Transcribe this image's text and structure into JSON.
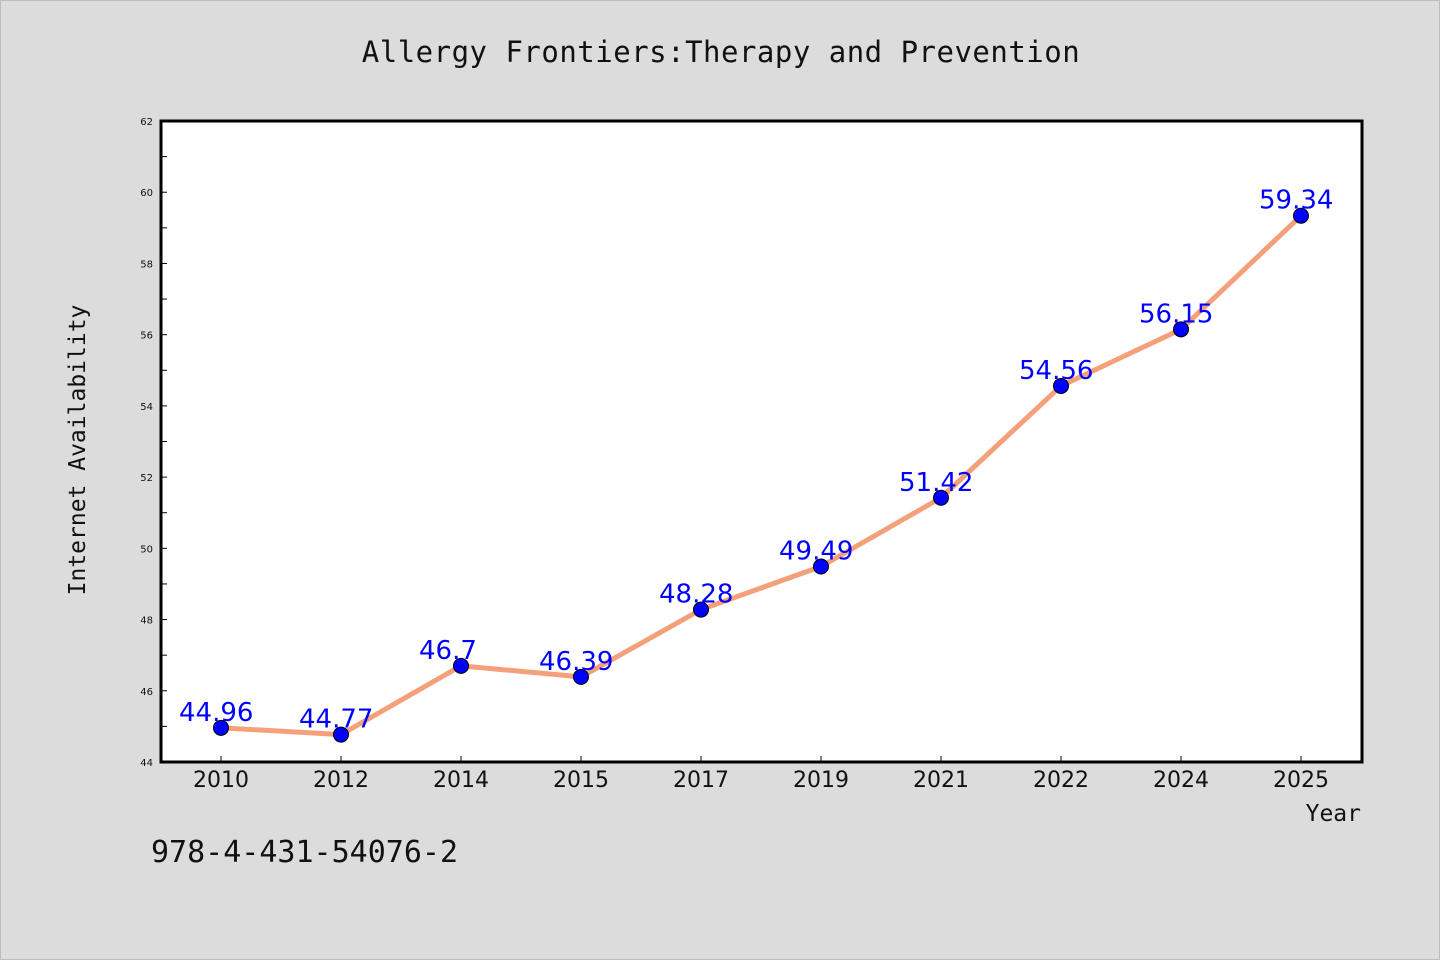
{
  "chart_data": {
    "type": "line",
    "title": "Allergy Frontiers:Therapy and Prevention",
    "xlabel": "Year",
    "ylabel": "Internet Availability",
    "categories": [
      "2010",
      "2012",
      "2014",
      "2015",
      "2017",
      "2019",
      "2021",
      "2022",
      "2024",
      "2025"
    ],
    "series": [
      {
        "values": [
          44.96,
          44.77,
          46.7,
          46.39,
          48.28,
          49.49,
          51.42,
          54.56,
          56.15,
          59.34
        ],
        "data_labels": [
          "44.96",
          "44.77",
          "46.7",
          "46.39",
          "48.28",
          "49.49",
          "51.42",
          "54.56",
          "56.15",
          "59.34"
        ]
      }
    ],
    "ylim": [
      44,
      62
    ],
    "yticks": [
      44,
      46,
      48,
      50,
      52,
      54,
      56,
      58,
      60,
      62
    ],
    "grid": false,
    "legend": "none",
    "colors": {
      "line": "#f4a07a",
      "marker": "#0000ff",
      "label": "#0000ff",
      "plot_bg": "#ffffff",
      "page_bg": "#dcdcdc"
    }
  },
  "footer": {
    "code": "978-4-431-54076-2"
  }
}
